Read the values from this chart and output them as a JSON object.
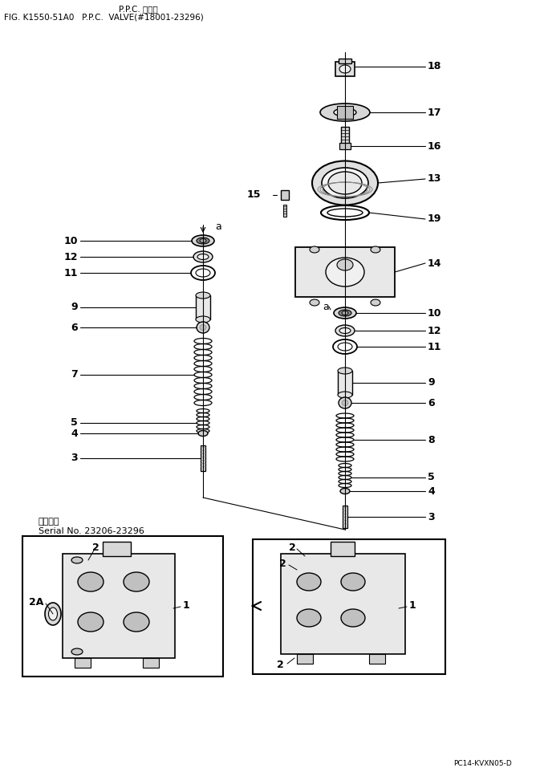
{
  "title_line1": "P.P.C. バルブ",
  "title_line2": "FIG. K1550-51A0   P.P.C.  VALVE(#18001-23296)",
  "footer_text": "PC14-KVXN05-D",
  "serial_text_line1": "適用号機",
  "serial_text_line2": "Serial No. 23206-23296",
  "bg_color": "#ffffff",
  "line_color": "#000000",
  "text_color": "#000000",
  "fig_width": 6.78,
  "fig_height": 9.57,
  "dpi": 100
}
